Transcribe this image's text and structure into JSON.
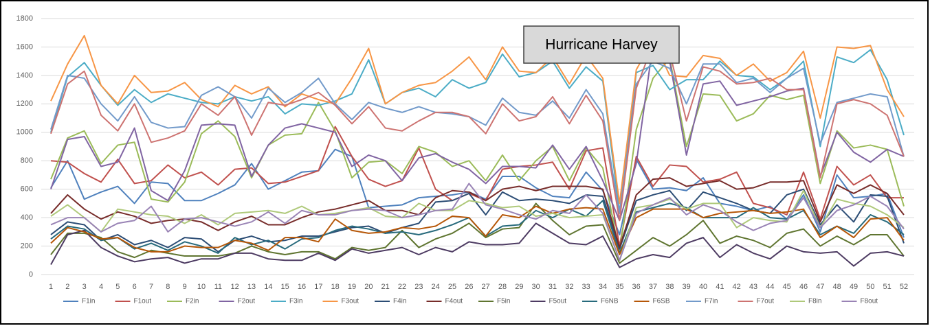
{
  "chart_data": {
    "type": "line",
    "annotation": "Hurricane Harvey",
    "categories": [
      1,
      2,
      3,
      4,
      5,
      6,
      7,
      8,
      9,
      10,
      11,
      12,
      13,
      14,
      15,
      16,
      17,
      18,
      19,
      20,
      21,
      22,
      23,
      24,
      25,
      26,
      27,
      28,
      29,
      30,
      31,
      32,
      33,
      34,
      35,
      36,
      37,
      38,
      39,
      40,
      41,
      42,
      43,
      44,
      45,
      46,
      47,
      48,
      49,
      50,
      51,
      52
    ],
    "ylim": [
      0,
      1800
    ],
    "yticks": [
      0,
      200,
      400,
      600,
      800,
      1000,
      1200,
      1400,
      1600,
      1800
    ],
    "grid": true,
    "legend": "bottom",
    "series": [
      {
        "name": "F1in",
        "color": "#4f81bd",
        "values": [
          610,
          800,
          530,
          580,
          620,
          500,
          650,
          640,
          520,
          520,
          570,
          630,
          780,
          600,
          660,
          720,
          730,
          880,
          830,
          470,
          480,
          490,
          540,
          550,
          560,
          580,
          530,
          690,
          690,
          610,
          550,
          540,
          720,
          590,
          280,
          810,
          600,
          610,
          590,
          680,
          500,
          480,
          450,
          480,
          390,
          560,
          300,
          700,
          540,
          550,
          570,
          260
        ]
      },
      {
        "name": "F1out",
        "color": "#c0504d",
        "values": [
          800,
          790,
          710,
          650,
          810,
          640,
          660,
          770,
          680,
          720,
          630,
          740,
          750,
          640,
          650,
          690,
          730,
          1040,
          830,
          670,
          620,
          660,
          890,
          600,
          520,
          570,
          520,
          740,
          760,
          770,
          790,
          600,
          870,
          890,
          200,
          830,
          620,
          770,
          760,
          650,
          670,
          720,
          500,
          470,
          420,
          720,
          390,
          760,
          630,
          700,
          540,
          540
        ]
      },
      {
        "name": "F2in",
        "color": "#9bbb59",
        "values": [
          670,
          960,
          1010,
          780,
          910,
          930,
          530,
          510,
          650,
          990,
          1080,
          970,
          680,
          910,
          980,
          990,
          1210,
          1010,
          680,
          790,
          800,
          710,
          900,
          860,
          760,
          800,
          660,
          840,
          660,
          800,
          900,
          660,
          890,
          750,
          150,
          1020,
          1380,
          1520,
          900,
          1270,
          1260,
          1080,
          1130,
          1260,
          1230,
          1260,
          640,
          1010,
          890,
          910,
          880,
          480
        ]
      },
      {
        "name": "F2out",
        "color": "#8064a2",
        "values": [
          600,
          950,
          970,
          760,
          790,
          1030,
          590,
          520,
          730,
          1050,
          1060,
          1050,
          690,
          910,
          1030,
          1060,
          1030,
          1000,
          760,
          840,
          800,
          660,
          820,
          850,
          790,
          740,
          640,
          760,
          760,
          750,
          910,
          740,
          900,
          660,
          380,
          780,
          1620,
          1500,
          840,
          1340,
          1360,
          1190,
          1220,
          1250,
          1290,
          1310,
          690,
          1000,
          860,
          790,
          880,
          830
        ]
      },
      {
        "name": "F3in",
        "color": "#4bacc6",
        "values": [
          1000,
          1390,
          1490,
          1330,
          1190,
          1300,
          1210,
          1270,
          1240,
          1210,
          1200,
          1250,
          1220,
          1250,
          1130,
          1200,
          1190,
          1220,
          1270,
          1510,
          1200,
          1280,
          1310,
          1250,
          1370,
          1310,
          1350,
          1550,
          1390,
          1420,
          1500,
          1310,
          1460,
          1360,
          440,
          1420,
          1470,
          1300,
          1370,
          1370,
          1500,
          1400,
          1390,
          1300,
          1380,
          1500,
          900,
          1530,
          1490,
          1580,
          1370,
          980
        ]
      },
      {
        "name": "F3out",
        "color": "#f79646",
        "values": [
          1220,
          1480,
          1680,
          1330,
          1200,
          1400,
          1280,
          1290,
          1350,
          1230,
          1180,
          1330,
          1270,
          1320,
          1180,
          1270,
          1230,
          1200,
          1380,
          1590,
          1200,
          1280,
          1330,
          1350,
          1430,
          1530,
          1370,
          1600,
          1430,
          1420,
          1530,
          1340,
          1540,
          1380,
          500,
          1440,
          1650,
          1400,
          1390,
          1540,
          1520,
          1400,
          1480,
          1360,
          1420,
          1570,
          1100,
          1600,
          1590,
          1610,
          1300,
          1110
        ]
      },
      {
        "name": "F4in",
        "color": "#2c4d75",
        "values": [
          280,
          370,
          350,
          240,
          280,
          210,
          240,
          190,
          260,
          250,
          160,
          240,
          270,
          230,
          240,
          270,
          270,
          300,
          330,
          340,
          290,
          330,
          360,
          510,
          520,
          570,
          420,
          580,
          520,
          530,
          520,
          500,
          560,
          550,
          180,
          520,
          560,
          590,
          450,
          580,
          540,
          500,
          450,
          430,
          560,
          600,
          350,
          490,
          370,
          560,
          550,
          220
        ]
      },
      {
        "name": "F4out",
        "color": "#772c2a",
        "values": [
          430,
          560,
          460,
          390,
          440,
          410,
          360,
          380,
          390,
          370,
          310,
          370,
          410,
          350,
          350,
          400,
          440,
          460,
          490,
          520,
          450,
          450,
          420,
          540,
          590,
          580,
          520,
          600,
          620,
          590,
          620,
          620,
          620,
          600,
          190,
          560,
          670,
          680,
          620,
          640,
          660,
          600,
          610,
          650,
          650,
          660,
          370,
          630,
          570,
          630,
          570,
          420
        ]
      },
      {
        "name": "F5in",
        "color": "#5f7530",
        "values": [
          140,
          290,
          290,
          260,
          160,
          120,
          170,
          150,
          130,
          130,
          130,
          150,
          200,
          160,
          140,
          160,
          160,
          110,
          190,
          170,
          190,
          310,
          190,
          250,
          290,
          360,
          260,
          320,
          330,
          500,
          380,
          280,
          340,
          350,
          80,
          170,
          260,
          200,
          280,
          380,
          220,
          270,
          240,
          190,
          290,
          320,
          200,
          270,
          210,
          280,
          280,
          130
        ]
      },
      {
        "name": "F5out",
        "color": "#4d3b62",
        "values": [
          70,
          280,
          310,
          190,
          130,
          90,
          110,
          120,
          80,
          110,
          110,
          150,
          150,
          110,
          100,
          100,
          150,
          100,
          180,
          150,
          170,
          190,
          140,
          190,
          160,
          230,
          210,
          210,
          220,
          360,
          290,
          220,
          210,
          270,
          50,
          110,
          140,
          120,
          220,
          260,
          120,
          210,
          150,
          110,
          200,
          160,
          150,
          160,
          60,
          150,
          160,
          130
        ]
      },
      {
        "name": "F6NB",
        "color": "#276a7c",
        "values": [
          250,
          340,
          320,
          240,
          260,
          180,
          220,
          170,
          230,
          200,
          150,
          260,
          210,
          240,
          180,
          250,
          260,
          310,
          340,
          320,
          290,
          300,
          280,
          310,
          350,
          400,
          270,
          340,
          350,
          450,
          400,
          460,
          410,
          520,
          150,
          440,
          470,
          500,
          470,
          400,
          400,
          400,
          470,
          400,
          390,
          450,
          280,
          340,
          290,
          420,
          370,
          280
        ]
      },
      {
        "name": "F6SB",
        "color": "#b65708",
        "values": [
          220,
          330,
          300,
          250,
          260,
          190,
          160,
          160,
          200,
          190,
          190,
          240,
          220,
          170,
          260,
          260,
          230,
          390,
          310,
          290,
          300,
          330,
          320,
          340,
          410,
          400,
          270,
          420,
          400,
          480,
          430,
          460,
          470,
          460,
          140,
          400,
          460,
          460,
          460,
          400,
          430,
          440,
          450,
          430,
          440,
          460,
          260,
          340,
          260,
          390,
          400,
          240
        ]
      },
      {
        "name": "F7in",
        "color": "#729aca",
        "values": [
          1020,
          1400,
          1380,
          1200,
          1080,
          1250,
          1070,
          1030,
          1040,
          1260,
          1320,
          1250,
          1100,
          1310,
          1210,
          1280,
          1380,
          1200,
          1090,
          1210,
          1170,
          1140,
          1180,
          1140,
          1130,
          1110,
          1050,
          1240,
          1140,
          1120,
          1220,
          1100,
          1300,
          1130,
          430,
          1340,
          1500,
          1450,
          1200,
          1480,
          1480,
          1350,
          1380,
          1280,
          1380,
          1450,
          920,
          1210,
          1240,
          1270,
          1250,
          830
        ]
      },
      {
        "name": "F7out",
        "color": "#cd7371",
        "values": [
          990,
          1340,
          1430,
          1120,
          1010,
          1200,
          930,
          960,
          1010,
          1200,
          1120,
          1250,
          980,
          1210,
          1190,
          1230,
          1280,
          1190,
          1060,
          1180,
          1030,
          1010,
          1080,
          1140,
          1140,
          1110,
          990,
          1200,
          1080,
          1110,
          1250,
          1060,
          1260,
          1080,
          380,
          1310,
          1620,
          1560,
          1080,
          1460,
          1430,
          1340,
          1350,
          1380,
          1300,
          1300,
          680,
          1200,
          1230,
          1200,
          1120,
          830
        ]
      },
      {
        "name": "F8in",
        "color": "#afc97a",
        "values": [
          410,
          490,
          400,
          300,
          460,
          440,
          420,
          410,
          360,
          420,
          350,
          430,
          440,
          450,
          430,
          480,
          420,
          430,
          450,
          470,
          410,
          400,
          500,
          450,
          450,
          520,
          500,
          470,
          480,
          410,
          430,
          400,
          410,
          420,
          100,
          470,
          490,
          530,
          460,
          500,
          500,
          330,
          400,
          380,
          370,
          590,
          330,
          530,
          500,
          480,
          420,
          330
        ]
      },
      {
        "name": "F8out",
        "color": "#9983b5",
        "values": [
          350,
          400,
          400,
          300,
          360,
          380,
          480,
          300,
          390,
          400,
          370,
          340,
          370,
          440,
          360,
          450,
          420,
          420,
          450,
          460,
          450,
          400,
          420,
          450,
          460,
          640,
          490,
          460,
          420,
          390,
          450,
          430,
          560,
          430,
          100,
          430,
          490,
          540,
          420,
          490,
          450,
          370,
          310,
          360,
          380,
          540,
          330,
          450,
          490,
          550,
          480,
          320
        ]
      }
    ]
  }
}
